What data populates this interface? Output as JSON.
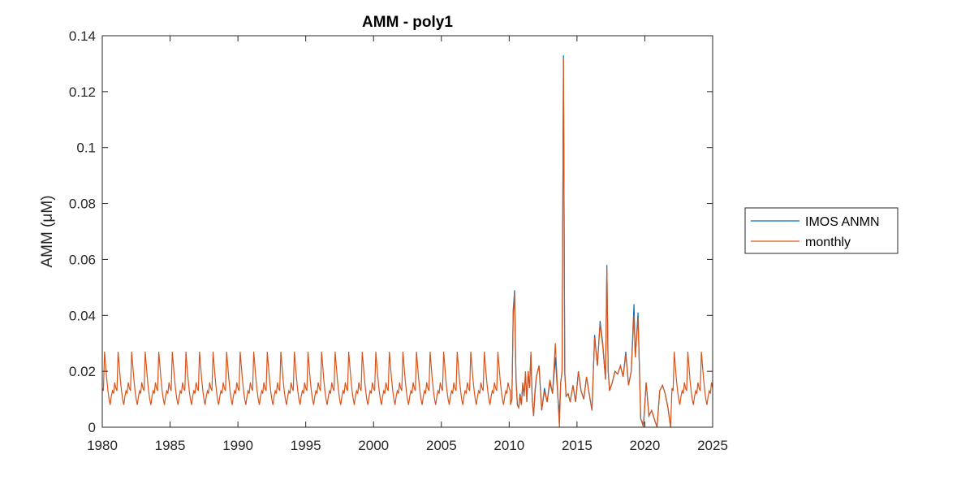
{
  "chart_data": {
    "type": "line",
    "title": "AMM - poly1",
    "xlabel": "",
    "ylabel": "AMM (μM)",
    "xlim": [
      1980,
      2025
    ],
    "ylim": [
      0,
      0.14
    ],
    "x_ticks": [
      1980,
      1985,
      1990,
      1995,
      2000,
      2005,
      2010,
      2015,
      2020,
      2025
    ],
    "y_ticks": [
      0,
      0.02,
      0.04,
      0.06,
      0.08,
      0.1,
      0.12,
      0.14
    ],
    "x_tick_labels": [
      "1980",
      "1985",
      "1990",
      "1995",
      "2000",
      "2005",
      "2010",
      "2015",
      "2020",
      "2025"
    ],
    "y_tick_labels": [
      "0",
      "0.02",
      "0.04",
      "0.06",
      "0.08",
      "0.1",
      "0.12",
      "0.14"
    ],
    "grid": false,
    "legend_position": "outside-right",
    "series": [
      {
        "name": "IMOS ANMN",
        "color": "#0072BD",
        "x": [
          2010.1,
          2010.2,
          2010.3,
          2010.4,
          2010.5,
          2010.6,
          2010.7,
          2010.8,
          2010.9,
          2011.0,
          2011.1,
          2011.2,
          2011.3,
          2011.4,
          2011.5,
          2011.6,
          2011.7,
          2011.8,
          2011.9,
          2012.0,
          2012.2,
          2012.4,
          2012.6,
          2012.8,
          2013.0,
          2013.2,
          2013.4,
          2013.6,
          2013.7,
          2013.8,
          2013.9,
          2014.0,
          2014.1,
          2014.2,
          2014.35,
          2014.5,
          2014.7,
          2014.9,
          2015.1,
          2015.3,
          2015.5,
          2015.7,
          2015.9,
          2016.1,
          2016.3,
          2016.5,
          2016.7,
          2016.9,
          2017.1,
          2017.2,
          2017.3,
          2017.4,
          2017.6,
          2017.8,
          2018.0,
          2018.2,
          2018.4,
          2018.6,
          2018.8,
          2019.0,
          2019.2,
          2019.3,
          2019.5,
          2019.7,
          2019.9,
          2020.1,
          2020.3,
          2020.5,
          2020.7,
          2020.9,
          2021.1,
          2021.3,
          2021.5,
          2021.7,
          2021.9
        ],
        "y": [
          0.008,
          0.01,
          0.042,
          0.049,
          0.018,
          0.008,
          0.007,
          0.012,
          0.008,
          0.015,
          0.011,
          0.019,
          0.009,
          0.02,
          0.014,
          0.026,
          0.01,
          0.004,
          0.012,
          0.018,
          0.022,
          0.006,
          0.014,
          0.009,
          0.016,
          0.012,
          0.025,
          0.01,
          0.005,
          0.016,
          0.02,
          0.133,
          0.02,
          0.011,
          0.012,
          0.009,
          0.015,
          0.009,
          0.02,
          0.013,
          0.01,
          0.018,
          0.012,
          0.006,
          0.033,
          0.022,
          0.038,
          0.03,
          0.017,
          0.058,
          0.02,
          0.013,
          0.016,
          0.02,
          0.019,
          0.022,
          0.018,
          0.027,
          0.015,
          0.02,
          0.044,
          0.025,
          0.041,
          0.003,
          0.001,
          0.016,
          0.004,
          0.006,
          0.003,
          0.0,
          0.013,
          0.015,
          0.012,
          0.007,
          0.0
        ]
      },
      {
        "name": "monthly",
        "color": "#D95319",
        "monthly_cycle": [
          0.014,
          0.013,
          0.027,
          0.022,
          0.017,
          0.013,
          0.01,
          0.008,
          0.011,
          0.013,
          0.012,
          0.016
        ],
        "cycle_start": 1980,
        "cycle_end": 2010.1,
        "x": [
          2010.1,
          2010.2,
          2010.3,
          2010.4,
          2010.5,
          2010.6,
          2010.7,
          2010.8,
          2010.9,
          2011.0,
          2011.1,
          2011.2,
          2011.3,
          2011.4,
          2011.5,
          2011.6,
          2011.7,
          2011.8,
          2011.9,
          2012.0,
          2012.2,
          2012.4,
          2012.6,
          2012.8,
          2013.0,
          2013.2,
          2013.4,
          2013.6,
          2013.7,
          2013.8,
          2013.9,
          2014.0,
          2014.1,
          2014.2,
          2014.35,
          2014.5,
          2014.7,
          2014.9,
          2015.1,
          2015.3,
          2015.5,
          2015.7,
          2015.9,
          2016.1,
          2016.3,
          2016.5,
          2016.7,
          2016.9,
          2017.1,
          2017.2,
          2017.3,
          2017.4,
          2017.6,
          2017.8,
          2018.0,
          2018.2,
          2018.4,
          2018.6,
          2018.8,
          2019.0,
          2019.2,
          2019.3,
          2019.5,
          2019.7,
          2019.9,
          2020.1,
          2020.3,
          2020.5,
          2020.7,
          2020.9,
          2021.1,
          2021.3,
          2021.5,
          2021.7,
          2021.9
        ],
        "y": [
          0.008,
          0.01,
          0.04,
          0.048,
          0.017,
          0.008,
          0.007,
          0.011,
          0.008,
          0.016,
          0.011,
          0.02,
          0.009,
          0.02,
          0.014,
          0.027,
          0.01,
          0.004,
          0.013,
          0.018,
          0.022,
          0.006,
          0.013,
          0.009,
          0.017,
          0.012,
          0.03,
          0.01,
          0.0,
          0.016,
          0.02,
          0.132,
          0.019,
          0.011,
          0.012,
          0.009,
          0.015,
          0.009,
          0.02,
          0.013,
          0.01,
          0.018,
          0.012,
          0.006,
          0.032,
          0.022,
          0.037,
          0.029,
          0.017,
          0.057,
          0.02,
          0.013,
          0.016,
          0.02,
          0.019,
          0.022,
          0.018,
          0.026,
          0.015,
          0.02,
          0.04,
          0.025,
          0.039,
          0.003,
          0.0,
          0.016,
          0.004,
          0.006,
          0.003,
          0.0,
          0.013,
          0.015,
          0.012,
          0.007,
          0.0
        ],
        "cycle2_start": 2022.0,
        "cycle2_end": 2025.0
      }
    ]
  }
}
